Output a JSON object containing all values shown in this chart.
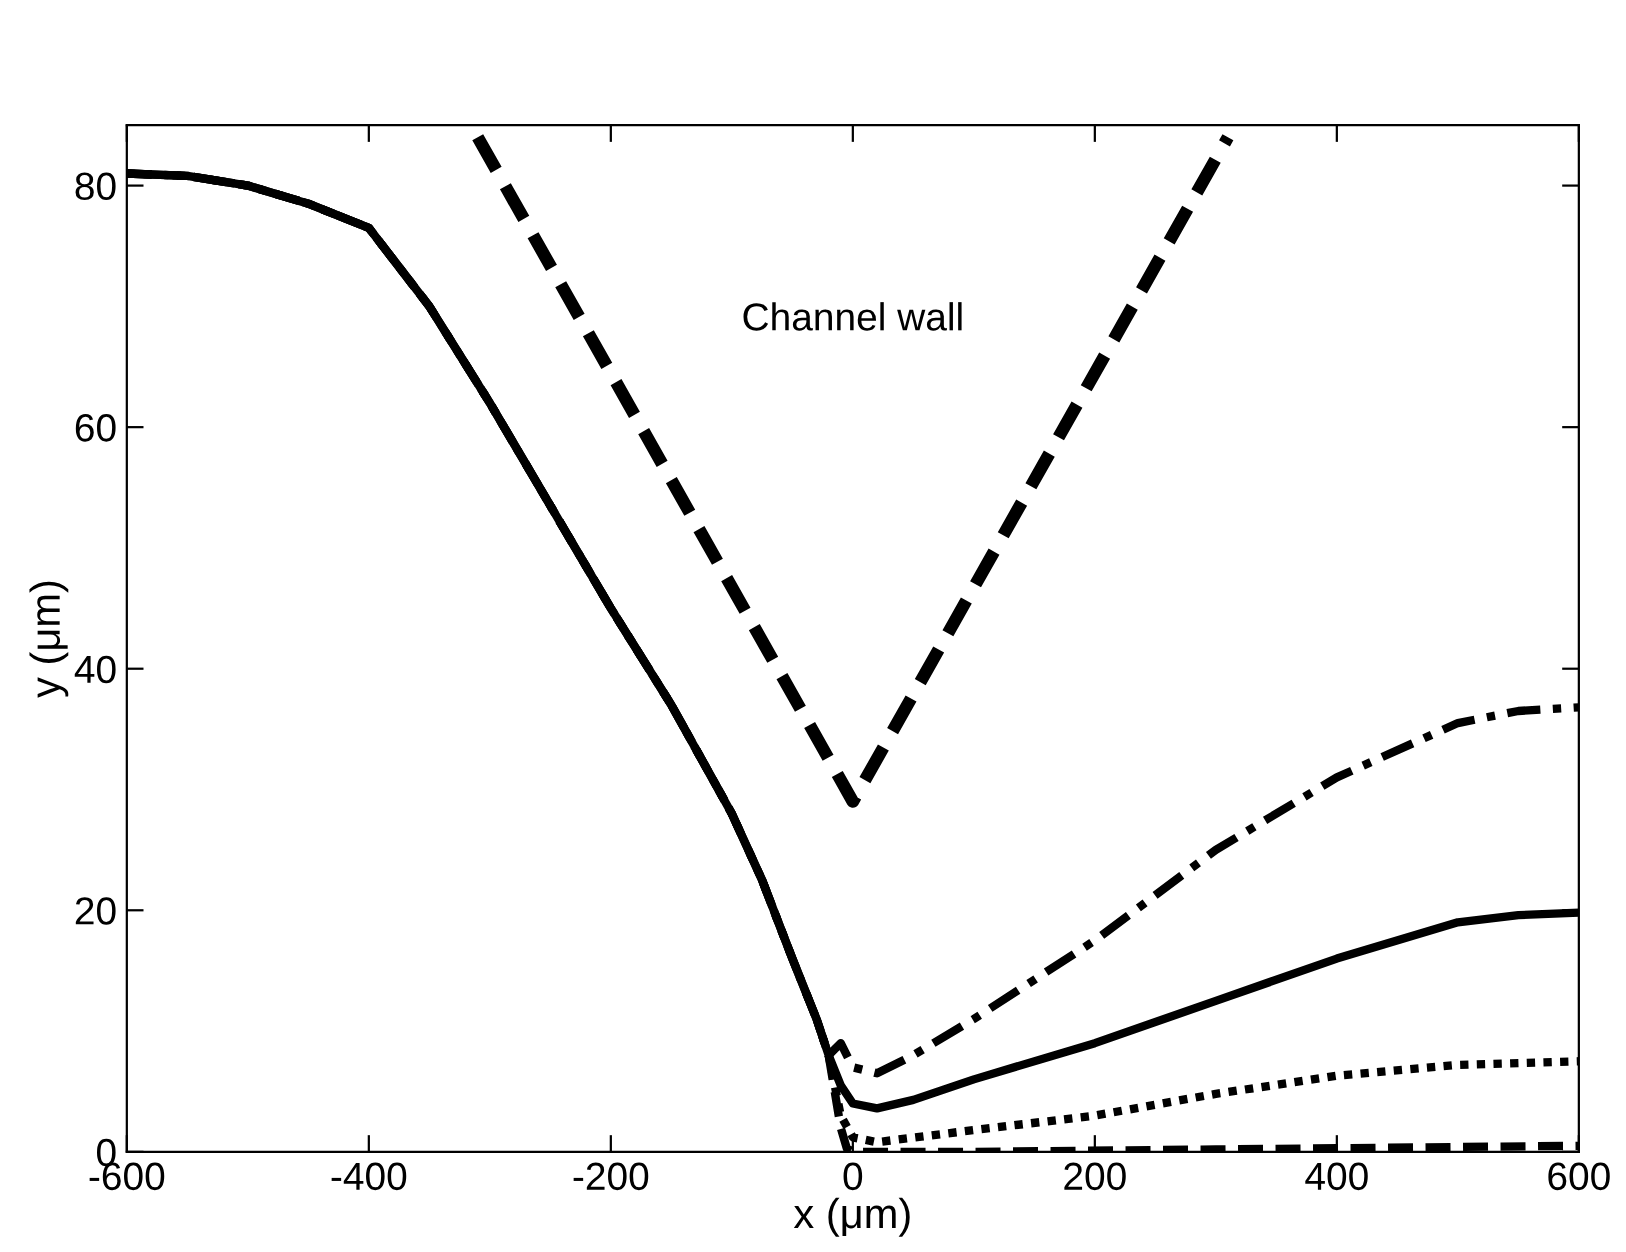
{
  "chart_data": {
    "type": "line",
    "xlabel": "x (μm)",
    "ylabel": "y (μm)",
    "xlim": [
      -600,
      600
    ],
    "ylim": [
      0,
      85
    ],
    "xticks": [
      -600,
      -400,
      -200,
      0,
      200,
      400,
      600
    ],
    "yticks": [
      0,
      20,
      40,
      60,
      80
    ],
    "grid": false,
    "legend": false,
    "marker": "none",
    "series": [
      {
        "color": "#000000",
        "line_style": "dashed",
        "x": [
          -600,
          -550,
          -500,
          -450,
          -400,
          -350,
          -300,
          -250,
          -200,
          -150,
          -100,
          -75,
          -50,
          -30,
          -20,
          -10,
          -5,
          0,
          100,
          300,
          600
        ],
        "values": [
          81,
          80.8,
          80,
          78.5,
          76.5,
          70,
          62,
          53.5,
          45,
          37,
          28,
          22.5,
          16,
          11,
          8,
          2,
          0.3,
          0,
          0,
          0.2,
          0.5
        ]
      },
      {
        "color": "#000000",
        "line_style": "dotted",
        "x": [
          -600,
          -550,
          -500,
          -450,
          -400,
          -350,
          -300,
          -250,
          -200,
          -150,
          -100,
          -75,
          -50,
          -30,
          -20,
          -10,
          0,
          20,
          100,
          200,
          300,
          400,
          500,
          600
        ],
        "values": [
          81,
          80.8,
          80,
          78.5,
          76.5,
          70,
          62,
          53.5,
          45,
          37,
          28,
          22.5,
          16,
          11,
          8,
          3,
          1.2,
          0.8,
          1.8,
          3,
          4.8,
          6.3,
          7.2,
          7.5
        ]
      },
      {
        "color": "#000000",
        "line_style": "solid",
        "x": [
          -600,
          -550,
          -500,
          -450,
          -400,
          -350,
          -300,
          -250,
          -200,
          -150,
          -100,
          -75,
          -50,
          -30,
          -20,
          -10,
          0,
          20,
          50,
          100,
          200,
          300,
          400,
          500,
          550,
          600
        ],
        "values": [
          81,
          80.8,
          80,
          78.5,
          76.5,
          70,
          62,
          53.5,
          45,
          37,
          28,
          22.5,
          16,
          11,
          8,
          5.5,
          4,
          3.6,
          4.3,
          6,
          9,
          12.5,
          16,
          19,
          19.6,
          19.8
        ]
      },
      {
        "color": "#000000",
        "line_style": "dashdot",
        "x": [
          -600,
          -550,
          -500,
          -450,
          -400,
          -350,
          -300,
          -250,
          -200,
          -150,
          -100,
          -75,
          -50,
          -30,
          -20,
          -10,
          0,
          20,
          50,
          100,
          200,
          300,
          400,
          500,
          550,
          600
        ],
        "values": [
          81,
          80.8,
          80,
          78.5,
          76.5,
          70,
          62,
          53.5,
          45,
          37,
          28,
          22.5,
          16,
          11,
          8,
          9,
          7,
          6.5,
          8,
          11,
          17.5,
          25,
          31,
          35.5,
          36.5,
          36.8
        ]
      },
      {
        "color": "#000000",
        "line_style": "dashed",
        "x": [
          -310,
          0,
          310
        ],
        "values": [
          84,
          29,
          84
        ]
      }
    ],
    "annotations": [
      "Channel wall"
    ]
  }
}
